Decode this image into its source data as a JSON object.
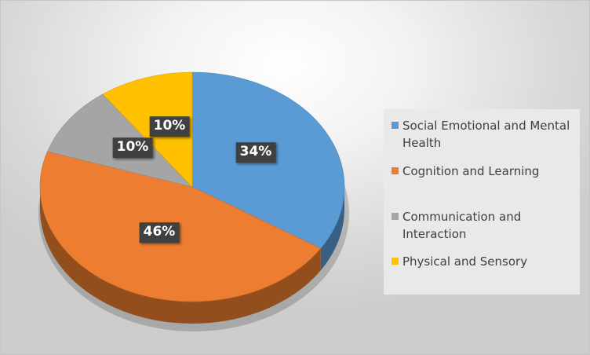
{
  "chart_data": {
    "type": "pie",
    "title": "",
    "three_d": true,
    "start_angle": "12 o'clock",
    "direction": "clockwise",
    "slices": [
      {
        "label": "Social Emotional and Mental Health",
        "value": 34,
        "display": "34%",
        "color": "#5b9bd5"
      },
      {
        "label": "Cognition and Learning",
        "value": 46,
        "display": "46%",
        "color": "#ed7d31"
      },
      {
        "label": "Communication and Interaction",
        "value": 10,
        "display": "10%",
        "color": "#a5a5a5"
      },
      {
        "label": "Physical and Sensory",
        "value": 10,
        "display": "10%",
        "color": "#ffc000"
      }
    ],
    "legend_position": "right",
    "data_labels": "percentage, dark boxes"
  }
}
